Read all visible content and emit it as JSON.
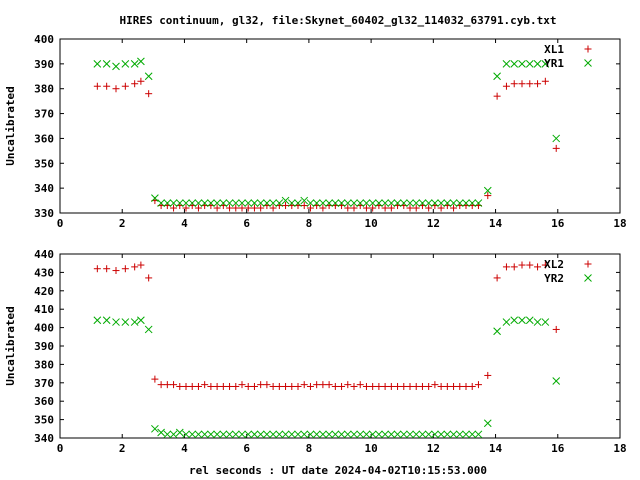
{
  "title": "HIRES continuum, gl32, file:Skynet_60402_gl32_114032_63791.cyb.txt",
  "xlabel": "rel seconds : UT date 2024-04-02T10:15:53.000",
  "chart_data": [
    {
      "type": "scatter",
      "ylabel": "Uncalibrated",
      "xlim": [
        0,
        18
      ],
      "ylim": [
        330,
        400
      ],
      "xticks": [
        0,
        2,
        4,
        6,
        8,
        10,
        12,
        14,
        16,
        18
      ],
      "yticks": [
        330,
        340,
        350,
        360,
        370,
        380,
        390,
        400
      ],
      "legend_position": "top-right",
      "series": [
        {
          "name": "XL1",
          "color": "#cc0000",
          "marker": "plus",
          "x": [
            1.2,
            1.5,
            1.8,
            2.1,
            2.4,
            2.6,
            2.85,
            3.05,
            3.25,
            3.45,
            3.65,
            3.85,
            4.05,
            4.25,
            4.45,
            4.65,
            4.85,
            5.05,
            5.25,
            5.45,
            5.65,
            5.85,
            6.05,
            6.25,
            6.45,
            6.65,
            6.85,
            7.05,
            7.25,
            7.45,
            7.65,
            7.85,
            8.05,
            8.25,
            8.45,
            8.65,
            8.85,
            9.05,
            9.25,
            9.45,
            9.65,
            9.85,
            10.05,
            10.25,
            10.45,
            10.65,
            10.85,
            11.05,
            11.25,
            11.45,
            11.65,
            11.85,
            12.05,
            12.25,
            12.45,
            12.65,
            12.85,
            13.05,
            13.25,
            13.45,
            13.75,
            14.05,
            14.35,
            14.6,
            14.85,
            15.1,
            15.35,
            15.6,
            15.95
          ],
          "y": [
            381,
            381,
            380,
            381,
            382,
            383,
            378,
            335,
            333,
            333,
            332,
            333,
            332,
            333,
            332,
            333,
            333,
            332,
            333,
            332,
            332,
            332,
            332,
            332,
            332,
            333,
            332,
            333,
            333,
            333,
            333,
            333,
            332,
            333,
            332,
            333,
            333,
            333,
            332,
            332,
            333,
            332,
            332,
            333,
            332,
            332,
            333,
            333,
            332,
            332,
            333,
            332,
            333,
            332,
            333,
            332,
            333,
            333,
            333,
            333,
            337,
            377,
            381,
            382,
            382,
            382,
            382,
            383,
            356
          ]
        },
        {
          "name": "YR1",
          "color": "#00aa00",
          "marker": "cross",
          "x": [
            1.2,
            1.5,
            1.8,
            2.1,
            2.4,
            2.6,
            2.85,
            3.05,
            3.25,
            3.45,
            3.65,
            3.85,
            4.05,
            4.25,
            4.45,
            4.65,
            4.85,
            5.05,
            5.25,
            5.45,
            5.65,
            5.85,
            6.05,
            6.25,
            6.45,
            6.65,
            6.85,
            7.05,
            7.25,
            7.45,
            7.65,
            7.85,
            8.05,
            8.25,
            8.45,
            8.65,
            8.85,
            9.05,
            9.25,
            9.45,
            9.65,
            9.85,
            10.05,
            10.25,
            10.45,
            10.65,
            10.85,
            11.05,
            11.25,
            11.45,
            11.65,
            11.85,
            12.05,
            12.25,
            12.45,
            12.65,
            12.85,
            13.05,
            13.25,
            13.45,
            13.75,
            14.05,
            14.35,
            14.6,
            14.85,
            15.1,
            15.35,
            15.6,
            15.95
          ],
          "y": [
            390,
            390,
            389,
            390,
            390,
            391,
            385,
            336,
            334,
            334,
            334,
            334,
            334,
            334,
            334,
            334,
            334,
            334,
            334,
            334,
            334,
            334,
            334,
            334,
            334,
            334,
            334,
            334,
            335,
            334,
            334,
            335,
            334,
            334,
            334,
            334,
            334,
            334,
            334,
            334,
            334,
            334,
            334,
            334,
            334,
            334,
            334,
            334,
            334,
            334,
            334,
            334,
            334,
            334,
            334,
            334,
            334,
            334,
            334,
            334,
            339,
            385,
            390,
            390,
            390,
            390,
            390,
            390,
            360
          ]
        }
      ]
    },
    {
      "type": "scatter",
      "ylabel": "Uncalibrated",
      "xlim": [
        0,
        18
      ],
      "ylim": [
        340,
        440
      ],
      "xticks": [
        0,
        2,
        4,
        6,
        8,
        10,
        12,
        14,
        16,
        18
      ],
      "yticks": [
        340,
        350,
        360,
        370,
        380,
        390,
        400,
        410,
        420,
        430,
        440
      ],
      "legend_position": "top-right",
      "series": [
        {
          "name": "XL2",
          "color": "#cc0000",
          "marker": "plus",
          "x": [
            1.2,
            1.5,
            1.8,
            2.1,
            2.4,
            2.6,
            2.85,
            3.05,
            3.25,
            3.45,
            3.65,
            3.85,
            4.05,
            4.25,
            4.45,
            4.65,
            4.85,
            5.05,
            5.25,
            5.45,
            5.65,
            5.85,
            6.05,
            6.25,
            6.45,
            6.65,
            6.85,
            7.05,
            7.25,
            7.45,
            7.65,
            7.85,
            8.05,
            8.25,
            8.45,
            8.65,
            8.85,
            9.05,
            9.25,
            9.45,
            9.65,
            9.85,
            10.05,
            10.25,
            10.45,
            10.65,
            10.85,
            11.05,
            11.25,
            11.45,
            11.65,
            11.85,
            12.05,
            12.25,
            12.45,
            12.65,
            12.85,
            13.05,
            13.25,
            13.45,
            13.75,
            14.05,
            14.35,
            14.6,
            14.85,
            15.1,
            15.35,
            15.6,
            15.95
          ],
          "y": [
            432,
            432,
            431,
            432,
            433,
            434,
            427,
            372,
            369,
            369,
            369,
            368,
            368,
            368,
            368,
            369,
            368,
            368,
            368,
            368,
            368,
            369,
            368,
            368,
            369,
            369,
            368,
            368,
            368,
            368,
            368,
            369,
            368,
            369,
            369,
            369,
            368,
            368,
            369,
            368,
            369,
            368,
            368,
            368,
            368,
            368,
            368,
            368,
            368,
            368,
            368,
            368,
            369,
            368,
            368,
            368,
            368,
            368,
            368,
            369,
            374,
            427,
            433,
            433,
            434,
            434,
            433,
            434,
            399
          ]
        },
        {
          "name": "YR2",
          "color": "#00aa00",
          "marker": "cross",
          "x": [
            1.2,
            1.5,
            1.8,
            2.1,
            2.4,
            2.6,
            2.85,
            3.05,
            3.25,
            3.45,
            3.65,
            3.85,
            4.05,
            4.25,
            4.45,
            4.65,
            4.85,
            5.05,
            5.25,
            5.45,
            5.65,
            5.85,
            6.05,
            6.25,
            6.45,
            6.65,
            6.85,
            7.05,
            7.25,
            7.45,
            7.65,
            7.85,
            8.05,
            8.25,
            8.45,
            8.65,
            8.85,
            9.05,
            9.25,
            9.45,
            9.65,
            9.85,
            10.05,
            10.25,
            10.45,
            10.65,
            10.85,
            11.05,
            11.25,
            11.45,
            11.65,
            11.85,
            12.05,
            12.25,
            12.45,
            12.65,
            12.85,
            13.05,
            13.25,
            13.45,
            13.75,
            14.05,
            14.35,
            14.6,
            14.85,
            15.1,
            15.35,
            15.6,
            15.95
          ],
          "y": [
            404,
            404,
            403,
            403,
            403,
            404,
            399,
            345,
            343,
            342,
            342,
            343,
            342,
            342,
            342,
            342,
            342,
            342,
            342,
            342,
            342,
            342,
            342,
            342,
            342,
            342,
            342,
            342,
            342,
            342,
            342,
            342,
            342,
            342,
            342,
            342,
            342,
            342,
            342,
            342,
            342,
            342,
            342,
            342,
            342,
            342,
            342,
            342,
            342,
            342,
            342,
            342,
            342,
            342,
            342,
            342,
            342,
            342,
            342,
            342,
            348,
            398,
            403,
            404,
            404,
            404,
            403,
            403,
            371
          ]
        }
      ]
    }
  ]
}
